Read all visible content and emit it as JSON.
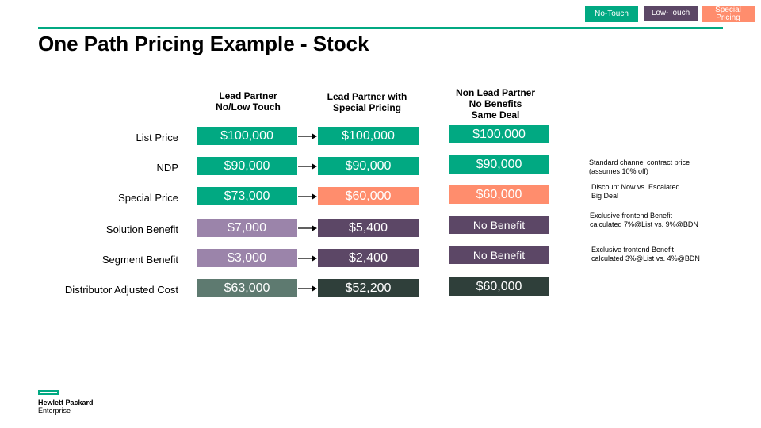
{
  "legend": {
    "no_touch": "No-Touch",
    "low_touch": "Low-Touch",
    "special_pricing": "Special Pricing"
  },
  "title": "One Path Pricing Example - Stock",
  "columns": {
    "col1": {
      "line1": "Lead Partner",
      "line2": "No/Low Touch"
    },
    "col2": {
      "line1": "Lead Partner with",
      "line2": "Special Pricing"
    },
    "col3": {
      "line1": "Non Lead Partner",
      "line2": "No Benefits",
      "line3": "Same Deal"
    }
  },
  "rows": {
    "list_price": {
      "label": "List Price",
      "c1": "$100,000",
      "c2": "$100,000",
      "c3": "$100,000"
    },
    "ndp": {
      "label": "NDP",
      "c1": "$90,000",
      "c2": "$90,000",
      "c3": "$90,000"
    },
    "special_price": {
      "label": "Special Price",
      "c1": "$73,000",
      "c2": "$60,000",
      "c3": "$60,000"
    },
    "solution_benefit": {
      "label": "Solution Benefit",
      "c1": "$7,000",
      "c2": "$5,400",
      "c3": "No Benefit"
    },
    "segment_benefit": {
      "label": "Segment Benefit",
      "c1": "$3,000",
      "c2": "$2,400",
      "c3": "No Benefit"
    },
    "distributor_adjusted_cost": {
      "label": "Distributor Adjusted Cost",
      "c1": "$63,000",
      "c2": "$52,200",
      "c3": "$60,000"
    }
  },
  "notes": {
    "ndp": {
      "line1": "Standard channel contract price",
      "line2": "(assumes  10% off)"
    },
    "special": {
      "line1": "Discount Now vs.  Escalated",
      "line2": "Big Deal"
    },
    "solution": {
      "line1": "Exclusive frontend Benefit",
      "line2": "calculated 7%@List vs. 9%@BDN"
    },
    "segment": {
      "line1": "Exclusive frontend Benefit",
      "line2": "calculated 3%@List vs. 4%@BDN"
    }
  },
  "logo": {
    "line1": "Hewlett Packard",
    "line2": "Enterprise"
  },
  "colors": {
    "green": "#01a982",
    "orange": "#ff8d6d",
    "lavender": "#9b84aa",
    "plum": "#5c4766",
    "sage": "#5e7a70",
    "dark": "#2f3f3a"
  }
}
